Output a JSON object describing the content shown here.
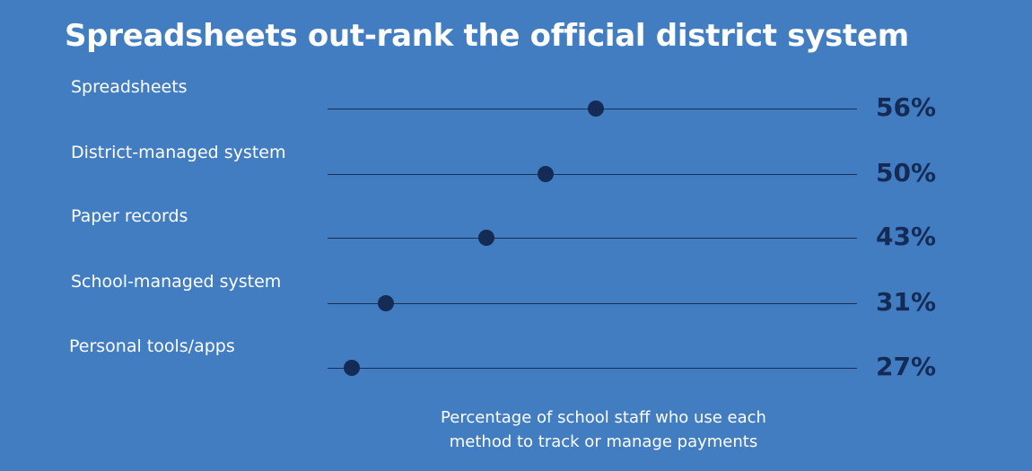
{
  "colors": {
    "background": "#427DC2",
    "title_text": "#FFFFFF",
    "label_text": "#FFFFFF",
    "track_line": "#1B2F55",
    "dot": "#142C55",
    "value_text": "#142C55"
  },
  "chart_data": {
    "type": "scatter",
    "title": "Spreadsheets out-rank the official district system",
    "categories": [
      "Spreadsheets",
      "District-managed system",
      "Paper records",
      "School-managed system",
      "Personal tools/apps"
    ],
    "values": [
      56,
      50,
      43,
      31,
      27
    ],
    "value_labels": [
      "56%",
      "50%",
      "43%",
      "31%",
      "27%"
    ],
    "xlim": [
      0,
      100
    ],
    "grid": false,
    "caption_lines": [
      "Percentage of school staff who use each",
      "method to track or manage payments"
    ]
  }
}
